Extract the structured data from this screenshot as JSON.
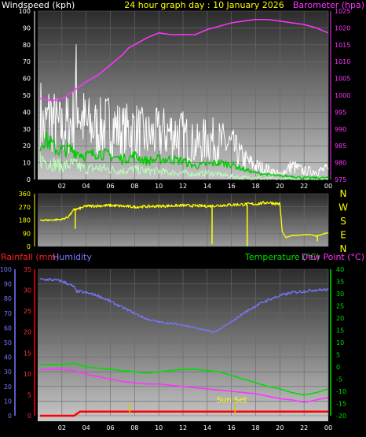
{
  "colors": {
    "background": "#000000",
    "wind": "#ffffff",
    "wind_avg": "#00cc00",
    "wind_low": "#bbffbb",
    "barometer": "#ff33ff",
    "direction": "#ffff00",
    "humidity": "#7777ff",
    "temperature": "#00dd00",
    "dewpoint": "#ff33ff",
    "rainfall": "#ff0000",
    "sun": "#cccc00"
  },
  "chart_data": [
    {
      "type": "line",
      "title": "24 hour graph day : 10 January 2026",
      "left_axis_label": "Windspeed (kph)",
      "right_axis_label": "Barometer (hpa)",
      "x_ticks": [
        "02",
        "04",
        "06",
        "08",
        "10",
        "12",
        "14",
        "16",
        "18",
        "20",
        "22",
        "00"
      ],
      "y_left": {
        "min": 0,
        "max": 100,
        "ticks": [
          "0",
          "10",
          "20",
          "30",
          "40",
          "50",
          "60",
          "70",
          "80",
          "90",
          "100"
        ]
      },
      "y_right": {
        "min": 975,
        "max": 1025,
        "ticks": [
          "975",
          "980",
          "985",
          "990",
          "995",
          "1000",
          "1005",
          "1010",
          "1015",
          "1020",
          "1025"
        ]
      },
      "grid": true,
      "series": [
        {
          "key": "barometer",
          "axis": "right",
          "x": [
            0.2,
            1,
            1.5,
            2,
            2.5,
            3,
            4,
            5,
            6,
            7,
            7.5,
            8,
            9,
            10,
            11,
            12,
            13,
            14,
            15,
            16,
            17,
            18,
            19,
            20,
            21,
            22,
            23,
            24
          ],
          "y": [
            999,
            998.5,
            998.5,
            999,
            1000,
            1001.5,
            1004,
            1006,
            1009,
            1012,
            1014,
            1015,
            1017,
            1018.5,
            1018,
            1018,
            1018,
            1019.5,
            1020.5,
            1021.5,
            1022,
            1022.5,
            1022.5,
            1022,
            1021.5,
            1021,
            1020,
            1018.5
          ]
        },
        {
          "key": "wind_gust",
          "axis": "left",
          "x": [
            0.2,
            0.5,
            1,
            1.5,
            2,
            2.5,
            3,
            3.2,
            3.5,
            4,
            5,
            6,
            7,
            8,
            9,
            10,
            11,
            12,
            13,
            14,
            15,
            16,
            17,
            18,
            19,
            20,
            21,
            22,
            23,
            24
          ],
          "y": [
            40,
            30,
            38,
            32,
            30,
            33,
            35,
            55,
            38,
            32,
            30,
            33,
            28,
            30,
            25,
            27,
            28,
            26,
            20,
            24,
            22,
            20,
            12,
            8,
            6,
            3,
            8,
            5,
            5,
            6
          ]
        },
        {
          "key": "wind_avg",
          "axis": "left",
          "x": [
            0.2,
            0.5,
            1,
            1.5,
            2,
            2.5,
            3,
            4,
            5,
            6,
            7,
            8,
            9,
            10,
            11,
            12,
            13,
            14,
            15,
            16,
            17,
            18,
            19,
            20,
            21,
            22,
            23,
            24
          ],
          "y": [
            20,
            24,
            22,
            18,
            17,
            18,
            17,
            14,
            16,
            14,
            12,
            14,
            11,
            12,
            12,
            11,
            8,
            9,
            10,
            9,
            6,
            4,
            3,
            2,
            2,
            1,
            1,
            1
          ]
        },
        {
          "key": "wind_low",
          "axis": "left",
          "x": [
            0.2,
            1,
            2,
            3,
            4,
            5,
            6,
            7,
            8,
            9,
            10,
            11,
            12,
            13,
            14,
            15,
            16,
            17,
            18,
            19,
            20,
            21,
            22,
            23,
            24
          ],
          "y": [
            12,
            10,
            8,
            9,
            6,
            7,
            6,
            5,
            6,
            5,
            5,
            4,
            4,
            3,
            4,
            3,
            2,
            1,
            1,
            0,
            0,
            0,
            0,
            0,
            0
          ]
        }
      ]
    },
    {
      "type": "line",
      "y_ticks": [
        "0",
        "90",
        "180",
        "270",
        "360"
      ],
      "y_range": [
        0,
        360
      ],
      "right_labels": [
        "N",
        "W",
        "S",
        "E",
        "N"
      ],
      "x_ticks": [
        "02",
        "04",
        "06",
        "08",
        "10",
        "12",
        "14",
        "16",
        "18",
        "20",
        "22",
        "00"
      ],
      "series": [
        {
          "key": "direction",
          "x": [
            0.2,
            1,
            2,
            2.5,
            3,
            3.5,
            4,
            6,
            8,
            10,
            12,
            14,
            16,
            18,
            19,
            20,
            20.2,
            20.5,
            21,
            22,
            22.5,
            23,
            24
          ],
          "y": [
            180,
            180,
            185,
            200,
            250,
            260,
            275,
            280,
            270,
            275,
            280,
            275,
            285,
            290,
            300,
            290,
            100,
            60,
            75,
            80,
            82,
            70,
            95
          ]
        }
      ],
      "spikes": [
        {
          "x": 3.1,
          "from": 260,
          "to": 120
        },
        {
          "x": 14.4,
          "from": 275,
          "to": 15
        },
        {
          "x": 17.3,
          "from": 285,
          "to": 0
        },
        {
          "x": 23.1,
          "from": 80,
          "to": 35
        }
      ]
    },
    {
      "type": "line",
      "left_axis_label": "Rainfall (mm)",
      "left_axis_label2": "Humidity",
      "right_axis_label": "Temperature (°C)",
      "right_axis_label2": "Dew Point (°C)",
      "x_ticks": [
        "02",
        "04",
        "06",
        "08",
        "10",
        "12",
        "14",
        "16",
        "18",
        "20",
        "22",
        "00"
      ],
      "humidity_axis": {
        "min": 0,
        "max": 100,
        "ticks": [
          "0",
          "10",
          "20",
          "30",
          "40",
          "50",
          "60",
          "70",
          "80",
          "90",
          "100"
        ]
      },
      "rain_axis": {
        "min": 0,
        "max": 35,
        "ticks": [
          "0",
          "5",
          "10",
          "15",
          "20",
          "25",
          "30",
          "35"
        ]
      },
      "temp_axis": {
        "min": -20,
        "max": 40,
        "ticks": [
          "-20",
          "-15",
          "-10",
          "-5",
          "0",
          "5",
          "10",
          "15",
          "20",
          "25",
          "30",
          "35",
          "40"
        ]
      },
      "annotation": "Sun Set",
      "annotation_x": 16.3,
      "sun_marks": [
        7.6,
        16.3
      ],
      "grid": true,
      "series": [
        {
          "key": "humidity",
          "axis": "humidity",
          "x": [
            0.2,
            1,
            2,
            2.5,
            3,
            3.2,
            4,
            5,
            6,
            7,
            8,
            9,
            10,
            11,
            12,
            13,
            14,
            14.6,
            15,
            16,
            17,
            18,
            19,
            20,
            21,
            22,
            23,
            24
          ],
          "y": [
            93,
            93,
            92,
            90,
            88,
            85,
            84,
            82,
            78,
            74,
            70,
            66,
            64,
            63,
            62,
            60,
            58,
            57,
            59,
            64,
            70,
            75,
            79,
            82,
            84,
            85,
            86,
            86
          ]
        },
        {
          "key": "temperature",
          "axis": "temp",
          "x": [
            0.2,
            1,
            2,
            3,
            4,
            5,
            6,
            7,
            8,
            9,
            10,
            11,
            12,
            13,
            14,
            15,
            16,
            17,
            18,
            19,
            20,
            21,
            22,
            23,
            24
          ],
          "y": [
            1,
            1,
            1,
            1.5,
            0,
            -0.5,
            -1,
            -1.5,
            -2,
            -2.5,
            -2,
            -1.5,
            -1,
            -1,
            -1.5,
            -2,
            -3.5,
            -5,
            -6.5,
            -8,
            -9,
            -10.5,
            -11.5,
            -10.5,
            -9
          ]
        },
        {
          "key": "dewpoint",
          "axis": "temp",
          "x": [
            0.2,
            1,
            2,
            3,
            4,
            5,
            6,
            7,
            8,
            9,
            10,
            11,
            12,
            13,
            14,
            15,
            16,
            17,
            18,
            19,
            20,
            21,
            22,
            23,
            24
          ],
          "y": [
            -1,
            -1,
            -1,
            -1.5,
            -3,
            -4,
            -5,
            -6,
            -6.5,
            -7,
            -7,
            -7.5,
            -8,
            -8.5,
            -9,
            -9.5,
            -10,
            -10.5,
            -11,
            -12,
            -13,
            -13.5,
            -14.5,
            -13.5,
            -12.5
          ]
        },
        {
          "key": "rainfall",
          "axis": "rain",
          "x": [
            0.2,
            3,
            3.5,
            24
          ],
          "y": [
            0,
            0,
            1,
            1
          ]
        }
      ]
    }
  ]
}
